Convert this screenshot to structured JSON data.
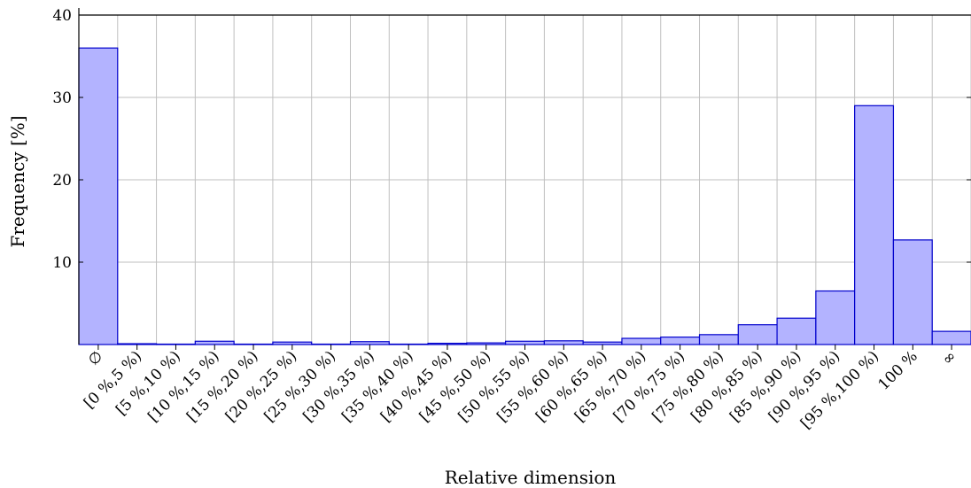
{
  "chart_data": {
    "type": "bar",
    "xlabel": "Relative dimension",
    "ylabel": "Frequency [%]",
    "ylim": [
      0,
      40
    ],
    "yticks": [
      "10",
      "20",
      "30",
      "40"
    ],
    "grid": true,
    "categories": [
      "∅",
      "[0 %,5 %)",
      "[5 %,10 %)",
      "[10 %,15 %)",
      "[15 %,20 %)",
      "[20 %,25 %)",
      "[25 %,30 %)",
      "[30 %,35 %)",
      "[35 %,40 %)",
      "[40 %,45 %)",
      "[45 %,50 %)",
      "[50 %,55 %)",
      "[55 %,60 %)",
      "[60 %,65 %)",
      "[65 %,70 %)",
      "[70 %,75 %)",
      "[75 %,80 %)",
      "[80 %,85 %)",
      "[85 %,90 %)",
      "[90 %,95 %)",
      "[95 %,100 %)",
      "100 %",
      "∞"
    ],
    "values": [
      36.0,
      0.1,
      0.05,
      0.4,
      0.05,
      0.3,
      0.05,
      0.35,
      0.05,
      0.15,
      0.2,
      0.4,
      0.45,
      0.3,
      0.75,
      0.9,
      1.2,
      2.4,
      3.2,
      6.5,
      29.0,
      12.7,
      1.6
    ],
    "colors": {
      "bar_fill": "#b3b3ff",
      "bar_stroke": "#0000cc"
    }
  }
}
